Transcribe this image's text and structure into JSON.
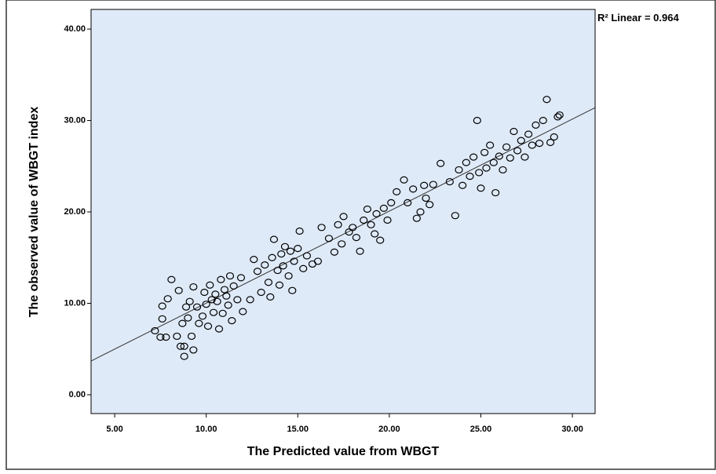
{
  "chart_data": {
    "type": "scatter",
    "x_label": "The Predicted value from WBGT",
    "y_label": "The observed value of WBGT index",
    "annotation": "R² Linear = 0.964",
    "xlim": [
      3.71,
      31.24
    ],
    "ylim": [
      -2.06,
      42.15
    ],
    "xticks": [
      {
        "value": 5,
        "label": "5.00"
      },
      {
        "value": 10,
        "label": "10.00"
      },
      {
        "value": 15,
        "label": "15.00"
      },
      {
        "value": 20,
        "label": "20.00"
      },
      {
        "value": 25,
        "label": "25.00"
      },
      {
        "value": 30,
        "label": "30.00"
      }
    ],
    "yticks": [
      {
        "value": 0,
        "label": "0.00"
      },
      {
        "value": 10,
        "label": "10.00"
      },
      {
        "value": 20,
        "label": "20.00"
      },
      {
        "value": 30,
        "label": "30.00"
      },
      {
        "value": 40,
        "label": "40.00"
      }
    ],
    "plot_background": "#dfeaf8",
    "fit_line": {
      "x": [
        3.71,
        31.24
      ],
      "y": [
        3.69,
        31.4
      ],
      "color": "#333333"
    },
    "series": [
      {
        "color": "#000000",
        "x": [
          7.2,
          7.5,
          7.6,
          7.6,
          7.8,
          7.9,
          8.1,
          8.4,
          8.5,
          8.6,
          8.7,
          8.8,
          8.8,
          8.9,
          9.0,
          9.1,
          9.2,
          9.3,
          9.3,
          9.5,
          9.6,
          9.8,
          9.9,
          10.0,
          10.1,
          10.2,
          10.3,
          10.4,
          10.5,
          10.6,
          10.7,
          10.8,
          10.9,
          11.0,
          11.1,
          11.2,
          11.3,
          11.4,
          11.5,
          11.7,
          11.9,
          12.0,
          12.4,
          12.6,
          12.8,
          13.0,
          13.2,
          13.4,
          13.5,
          13.6,
          13.7,
          13.9,
          14.0,
          14.1,
          14.2,
          14.3,
          14.5,
          14.6,
          14.7,
          14.8,
          15.0,
          15.1,
          15.3,
          15.5,
          15.8,
          16.1,
          16.3,
          16.7,
          17.0,
          17.2,
          17.4,
          17.5,
          17.8,
          18.0,
          18.2,
          18.4,
          18.6,
          18.8,
          19.0,
          19.2,
          19.3,
          19.5,
          19.7,
          19.9,
          20.1,
          20.4,
          20.8,
          21.0,
          21.3,
          21.5,
          21.7,
          21.9,
          22.0,
          22.2,
          22.4,
          22.8,
          23.3,
          23.6,
          23.8,
          24.0,
          24.2,
          24.4,
          24.6,
          24.8,
          24.9,
          25.0,
          25.2,
          25.3,
          25.5,
          25.7,
          25.8,
          26.0,
          26.2,
          26.4,
          26.6,
          26.8,
          27.0,
          27.2,
          27.4,
          27.6,
          27.8,
          28.0,
          28.2,
          28.4,
          28.6,
          28.8,
          29.0,
          29.2,
          29.3
        ],
        "values": [
          7.0,
          6.3,
          8.3,
          9.7,
          6.3,
          10.5,
          12.6,
          6.4,
          11.4,
          5.3,
          7.8,
          4.2,
          5.3,
          9.6,
          8.4,
          10.2,
          6.4,
          4.9,
          11.8,
          9.6,
          7.8,
          8.6,
          11.2,
          9.9,
          7.5,
          12.0,
          10.4,
          9.0,
          11.0,
          10.2,
          7.2,
          12.6,
          8.9,
          11.5,
          10.8,
          9.8,
          13.0,
          8.1,
          11.9,
          10.4,
          12.8,
          9.1,
          10.4,
          14.8,
          13.5,
          11.2,
          14.2,
          12.3,
          10.7,
          15.0,
          17.0,
          13.6,
          12.0,
          15.4,
          14.1,
          16.2,
          13.0,
          15.7,
          11.4,
          14.6,
          16.0,
          17.9,
          13.8,
          15.2,
          14.3,
          14.6,
          18.3,
          17.1,
          15.6,
          18.6,
          16.5,
          19.5,
          17.8,
          18.3,
          17.2,
          15.7,
          19.1,
          20.3,
          18.6,
          17.6,
          19.8,
          16.9,
          20.4,
          19.1,
          21.0,
          22.2,
          23.5,
          21.0,
          22.5,
          19.3,
          20.0,
          22.9,
          21.5,
          20.8,
          23.0,
          25.3,
          23.3,
          19.6,
          24.6,
          22.9,
          25.4,
          23.9,
          26.0,
          30.0,
          24.3,
          22.6,
          26.5,
          24.8,
          27.3,
          25.4,
          22.1,
          26.1,
          24.6,
          27.1,
          25.9,
          28.8,
          26.7,
          27.8,
          26.0,
          28.5,
          27.3,
          29.5,
          27.5,
          30.0,
          32.3,
          27.6,
          28.2,
          30.4,
          30.6
        ]
      }
    ]
  }
}
